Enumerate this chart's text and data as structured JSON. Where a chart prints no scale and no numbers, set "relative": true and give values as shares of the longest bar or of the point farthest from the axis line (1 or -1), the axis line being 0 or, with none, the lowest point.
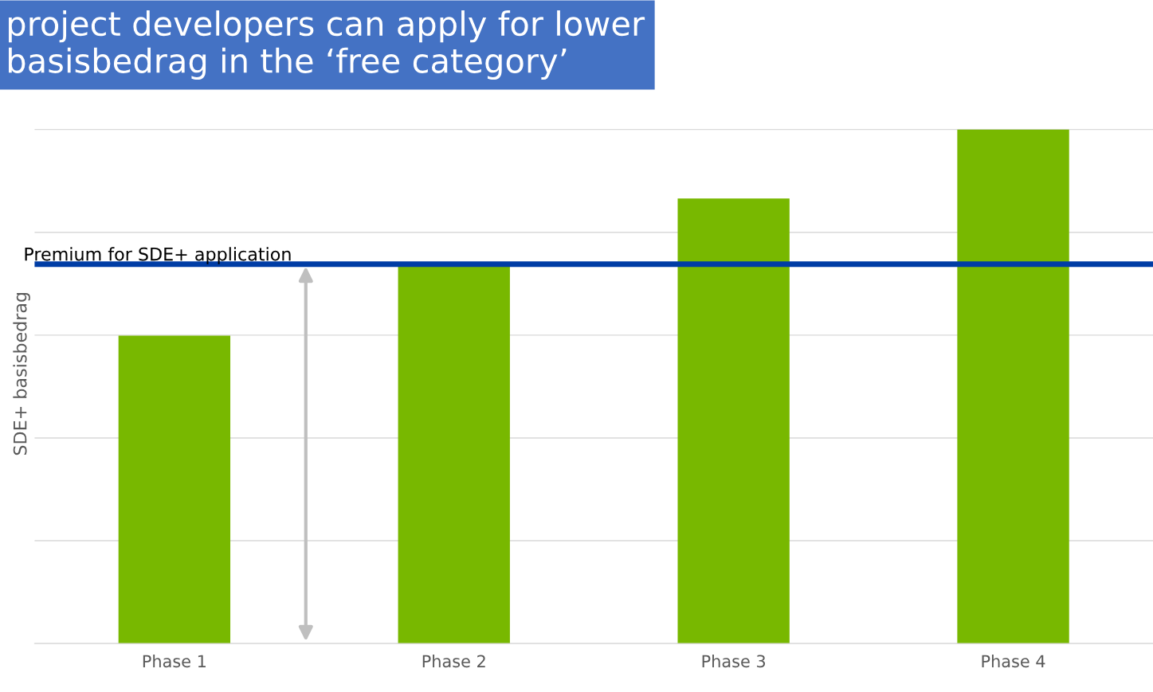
{
  "chart_data": {
    "type": "bar",
    "title": "project developers can apply for lower\nbasisbedrag in the ‘free category’",
    "ylabel": "SDE+ basisbedrag",
    "categories": [
      "Phase 1",
      "Phase 2",
      "Phase 3",
      "Phase 4"
    ],
    "values": [
      0.599,
      0.736,
      0.866,
      1.0
    ],
    "color": "#78b800",
    "relative": true,
    "grid": "y",
    "tick_labels": "x",
    "ref_lines": [
      {
        "axis": "y",
        "value": 0.738,
        "label": "Premium for SDE+ application",
        "color": "#003da5"
      }
    ]
  }
}
